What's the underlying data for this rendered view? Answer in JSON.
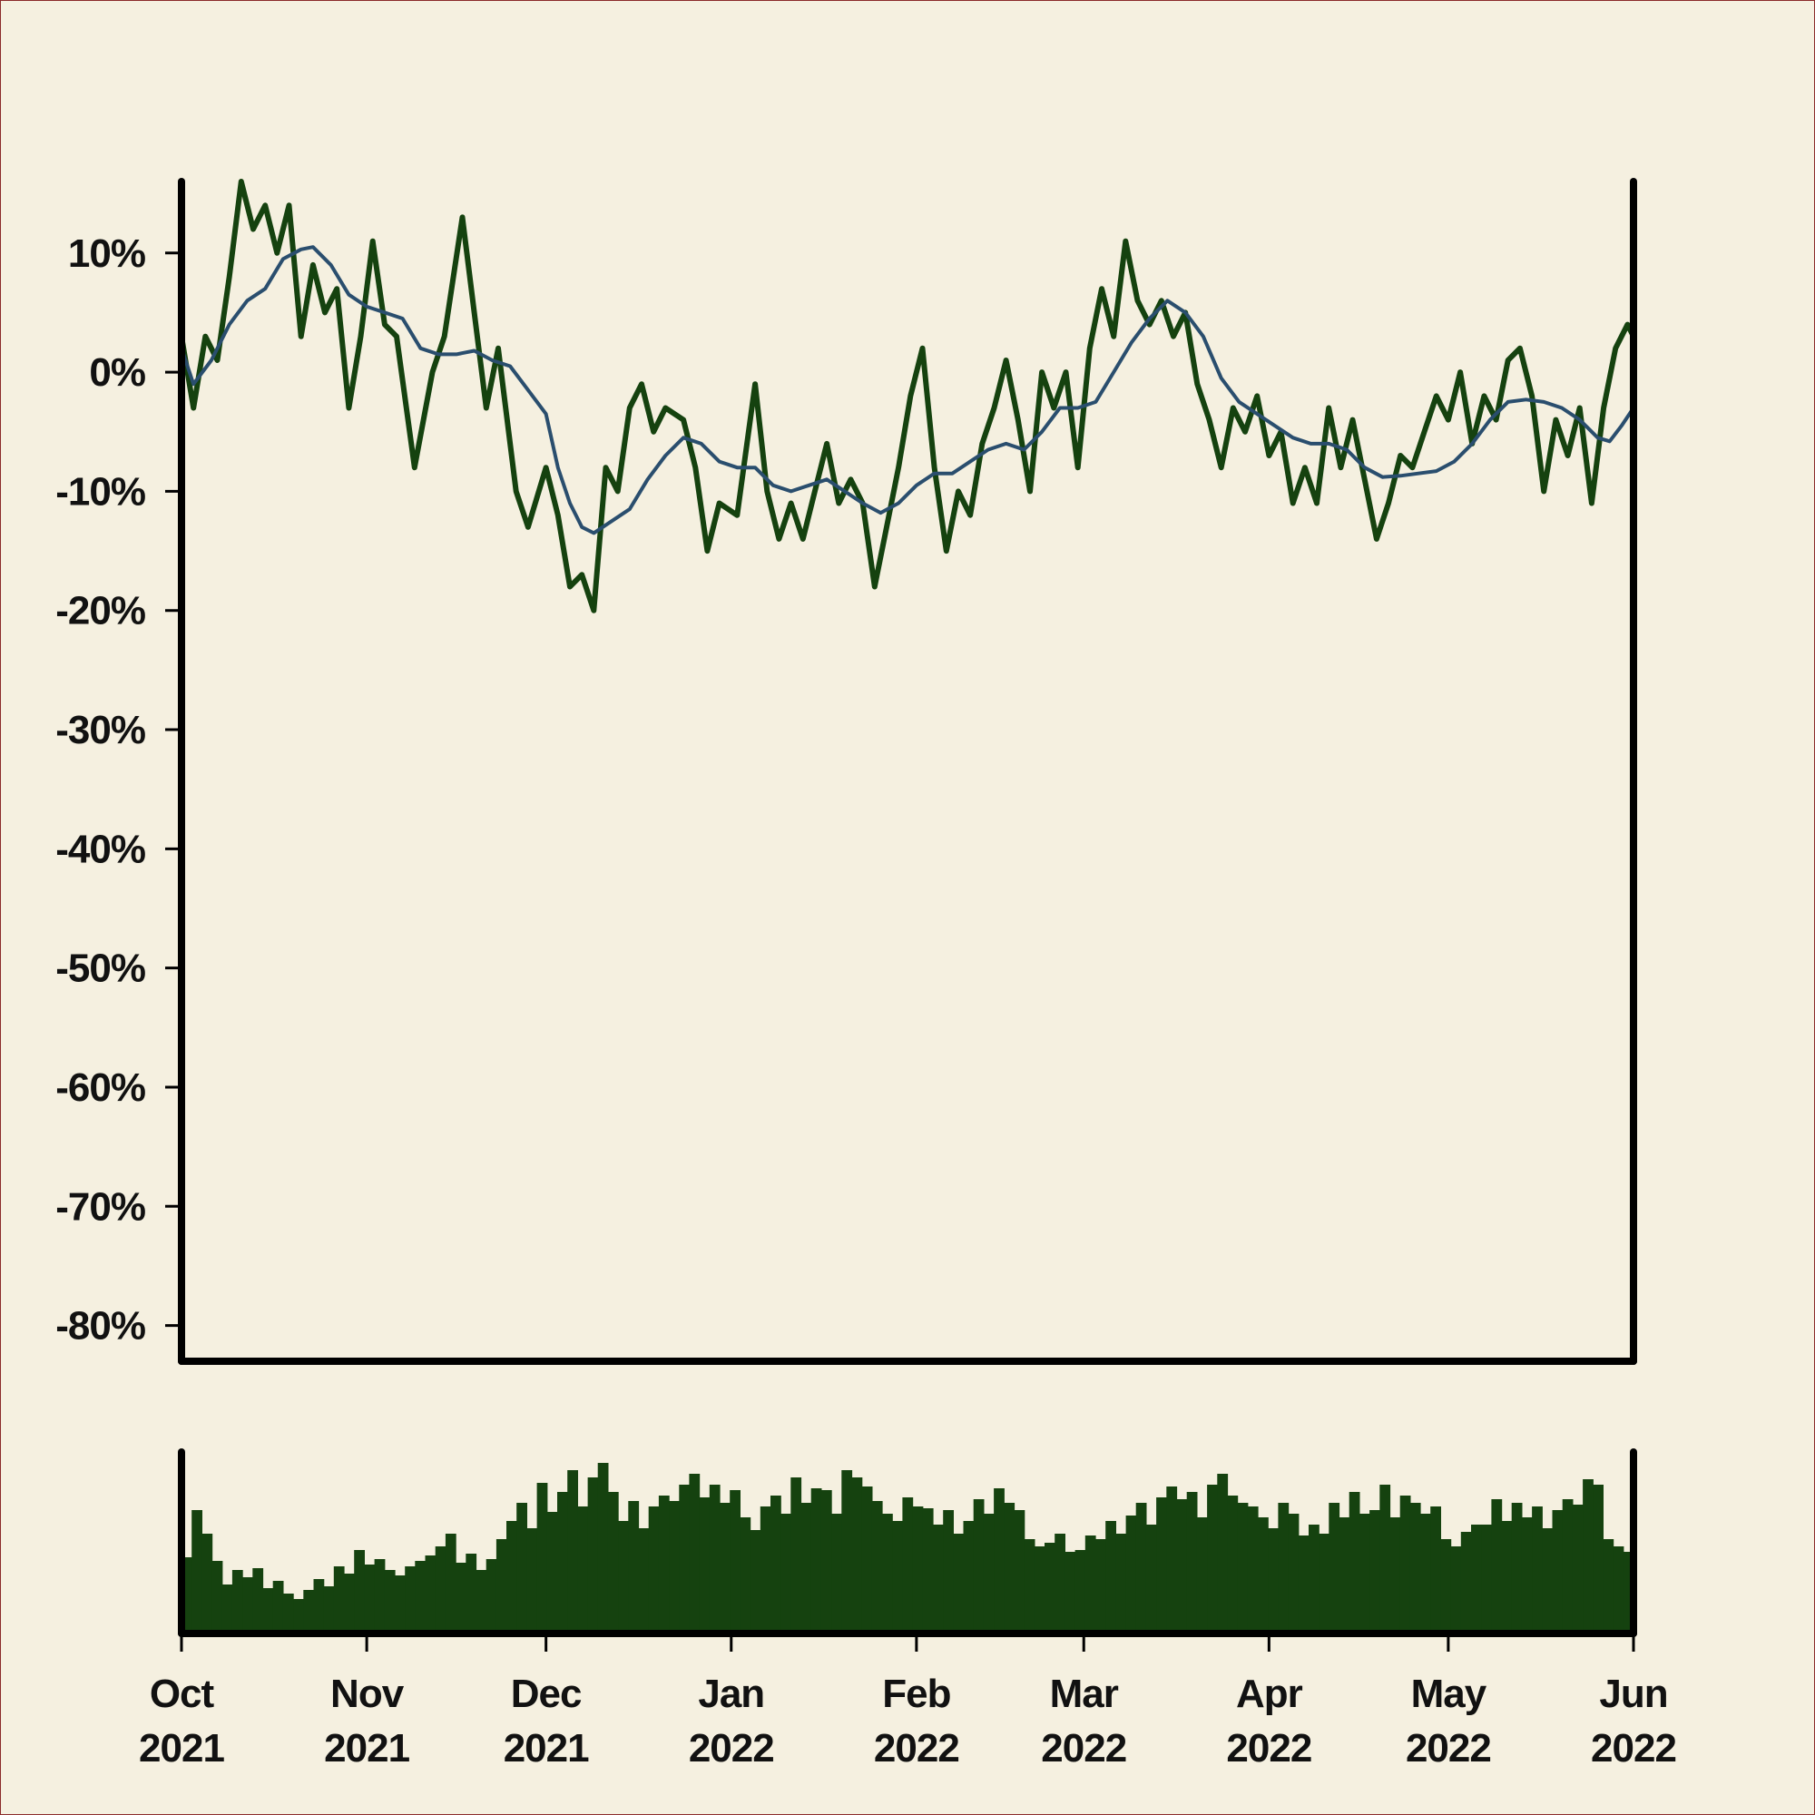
{
  "chart_data": {
    "type": "line",
    "xlabel": "",
    "ylabel": "",
    "x_range": [
      "2021-10-01",
      "2022-06-01"
    ],
    "ylim": [
      -83,
      16
    ],
    "y_ticks": [
      10,
      0,
      -10,
      -20,
      -30,
      -40,
      -50,
      -60,
      -70,
      -80
    ],
    "y_tick_labels": [
      "10%",
      "0%",
      "-10%",
      "-20%",
      "-30%",
      "-40%",
      "-50%",
      "-60%",
      "-70%",
      "-80%"
    ],
    "x_ticks": [
      {
        "date": "2021-10-01",
        "month": "Oct",
        "year": "2021"
      },
      {
        "date": "2021-11-01",
        "month": "Nov",
        "year": "2021"
      },
      {
        "date": "2021-12-01",
        "month": "Dec",
        "year": "2021"
      },
      {
        "date": "2022-01-01",
        "month": "Jan",
        "year": "2022"
      },
      {
        "date": "2022-02-01",
        "month": "Feb",
        "year": "2022"
      },
      {
        "date": "2022-03-01",
        "month": "Mar",
        "year": "2022"
      },
      {
        "date": "2022-04-01",
        "month": "Apr",
        "year": "2022"
      },
      {
        "date": "2022-05-01",
        "month": "May",
        "year": "2022"
      },
      {
        "date": "2022-06-01",
        "month": "Jun",
        "year": "2022"
      }
    ],
    "grid": false,
    "legend": "none",
    "series": [
      {
        "role": "price",
        "color": "#15420f",
        "points": [
          [
            "2021-10-01",
            3
          ],
          [
            "2021-10-03",
            -3
          ],
          [
            "2021-10-05",
            3
          ],
          [
            "2021-10-07",
            1
          ],
          [
            "2021-10-09",
            8
          ],
          [
            "2021-10-11",
            16
          ],
          [
            "2021-10-13",
            12
          ],
          [
            "2021-10-15",
            14
          ],
          [
            "2021-10-17",
            10
          ],
          [
            "2021-10-19",
            14
          ],
          [
            "2021-10-21",
            3
          ],
          [
            "2021-10-23",
            9
          ],
          [
            "2021-10-25",
            5
          ],
          [
            "2021-10-27",
            7
          ],
          [
            "2021-10-29",
            -3
          ],
          [
            "2021-10-31",
            3
          ],
          [
            "2021-11-02",
            11
          ],
          [
            "2021-11-04",
            4
          ],
          [
            "2021-11-06",
            3
          ],
          [
            "2021-11-09",
            -8
          ],
          [
            "2021-11-12",
            0
          ],
          [
            "2021-11-14",
            3
          ],
          [
            "2021-11-17",
            13
          ],
          [
            "2021-11-19",
            5
          ],
          [
            "2021-11-21",
            -3
          ],
          [
            "2021-11-23",
            2
          ],
          [
            "2021-11-26",
            -10
          ],
          [
            "2021-11-28",
            -13
          ],
          [
            "2021-12-01",
            -8
          ],
          [
            "2021-12-03",
            -12
          ],
          [
            "2021-12-05",
            -18
          ],
          [
            "2021-12-07",
            -17
          ],
          [
            "2021-12-09",
            -20
          ],
          [
            "2021-12-11",
            -8
          ],
          [
            "2021-12-13",
            -10
          ],
          [
            "2021-12-15",
            -3
          ],
          [
            "2021-12-17",
            -1
          ],
          [
            "2021-12-19",
            -5
          ],
          [
            "2021-12-21",
            -3
          ],
          [
            "2021-12-24",
            -4
          ],
          [
            "2021-12-26",
            -8
          ],
          [
            "2021-12-28",
            -15
          ],
          [
            "2021-12-30",
            -11
          ],
          [
            "2022-01-02",
            -12
          ],
          [
            "2022-01-05",
            -1
          ],
          [
            "2022-01-07",
            -10
          ],
          [
            "2022-01-09",
            -14
          ],
          [
            "2022-01-11",
            -11
          ],
          [
            "2022-01-13",
            -14
          ],
          [
            "2022-01-15",
            -10
          ],
          [
            "2022-01-17",
            -6
          ],
          [
            "2022-01-19",
            -11
          ],
          [
            "2022-01-21",
            -9
          ],
          [
            "2022-01-23",
            -11
          ],
          [
            "2022-01-25",
            -18
          ],
          [
            "2022-01-27",
            -13
          ],
          [
            "2022-01-29",
            -8
          ],
          [
            "2022-01-31",
            -2
          ],
          [
            "2022-02-02",
            2
          ],
          [
            "2022-02-04",
            -8
          ],
          [
            "2022-02-06",
            -15
          ],
          [
            "2022-02-08",
            -10
          ],
          [
            "2022-02-10",
            -12
          ],
          [
            "2022-02-12",
            -6
          ],
          [
            "2022-02-14",
            -3
          ],
          [
            "2022-02-16",
            1
          ],
          [
            "2022-02-18",
            -4
          ],
          [
            "2022-02-20",
            -10
          ],
          [
            "2022-02-22",
            0
          ],
          [
            "2022-02-24",
            -3
          ],
          [
            "2022-02-26",
            0
          ],
          [
            "2022-02-28",
            -8
          ],
          [
            "2022-03-02",
            2
          ],
          [
            "2022-03-04",
            7
          ],
          [
            "2022-03-06",
            3
          ],
          [
            "2022-03-08",
            11
          ],
          [
            "2022-03-10",
            6
          ],
          [
            "2022-03-12",
            4
          ],
          [
            "2022-03-14",
            6
          ],
          [
            "2022-03-16",
            3
          ],
          [
            "2022-03-18",
            5
          ],
          [
            "2022-03-20",
            -1
          ],
          [
            "2022-03-22",
            -4
          ],
          [
            "2022-03-24",
            -8
          ],
          [
            "2022-03-26",
            -3
          ],
          [
            "2022-03-28",
            -5
          ],
          [
            "2022-03-30",
            -2
          ],
          [
            "2022-04-01",
            -7
          ],
          [
            "2022-04-03",
            -5
          ],
          [
            "2022-04-05",
            -11
          ],
          [
            "2022-04-07",
            -8
          ],
          [
            "2022-04-09",
            -11
          ],
          [
            "2022-04-11",
            -3
          ],
          [
            "2022-04-13",
            -8
          ],
          [
            "2022-04-15",
            -4
          ],
          [
            "2022-04-17",
            -9
          ],
          [
            "2022-04-19",
            -14
          ],
          [
            "2022-04-21",
            -11
          ],
          [
            "2022-04-23",
            -7
          ],
          [
            "2022-04-25",
            -8
          ],
          [
            "2022-04-27",
            -5
          ],
          [
            "2022-04-29",
            -2
          ],
          [
            "2022-05-01",
            -4
          ],
          [
            "2022-05-03",
            0
          ],
          [
            "2022-05-05",
            -6
          ],
          [
            "2022-05-07",
            -2
          ],
          [
            "2022-05-09",
            -4
          ],
          [
            "2022-05-11",
            1
          ],
          [
            "2022-05-13",
            2
          ],
          [
            "2022-05-15",
            -2
          ],
          [
            "2022-05-17",
            -10
          ],
          [
            "2022-05-19",
            -4
          ],
          [
            "2022-05-21",
            -7
          ],
          [
            "2022-05-23",
            -3
          ],
          [
            "2022-05-25",
            -11
          ],
          [
            "2022-05-27",
            -3
          ],
          [
            "2022-05-29",
            2
          ],
          [
            "2022-05-31",
            4
          ],
          [
            "2022-06-01",
            3
          ]
        ]
      },
      {
        "role": "moving-average",
        "color": "#2a4e6e",
        "points": [
          [
            "2021-10-01",
            2
          ],
          [
            "2021-10-03",
            -1
          ],
          [
            "2021-10-06",
            1
          ],
          [
            "2021-10-09",
            4
          ],
          [
            "2021-10-12",
            6
          ],
          [
            "2021-10-15",
            7
          ],
          [
            "2021-10-18",
            9.5
          ],
          [
            "2021-10-21",
            10.3
          ],
          [
            "2021-10-23",
            10.5
          ],
          [
            "2021-10-26",
            9
          ],
          [
            "2021-10-29",
            6.5
          ],
          [
            "2021-11-01",
            5.5
          ],
          [
            "2021-11-04",
            5
          ],
          [
            "2021-11-07",
            4.5
          ],
          [
            "2021-11-10",
            2
          ],
          [
            "2021-11-13",
            1.5
          ],
          [
            "2021-11-16",
            1.5
          ],
          [
            "2021-11-19",
            1.8
          ],
          [
            "2021-11-22",
            1
          ],
          [
            "2021-11-25",
            0.5
          ],
          [
            "2021-11-28",
            -1.5
          ],
          [
            "2021-12-01",
            -3.5
          ],
          [
            "2021-12-03",
            -8
          ],
          [
            "2021-12-05",
            -11
          ],
          [
            "2021-12-07",
            -13
          ],
          [
            "2021-12-09",
            -13.5
          ],
          [
            "2021-12-12",
            -12.5
          ],
          [
            "2021-12-15",
            -11.5
          ],
          [
            "2021-12-18",
            -9
          ],
          [
            "2021-12-21",
            -7
          ],
          [
            "2021-12-24",
            -5.5
          ],
          [
            "2021-12-27",
            -6
          ],
          [
            "2021-12-30",
            -7.5
          ],
          [
            "2022-01-02",
            -8
          ],
          [
            "2022-01-05",
            -8
          ],
          [
            "2022-01-08",
            -9.5
          ],
          [
            "2022-01-11",
            -10
          ],
          [
            "2022-01-14",
            -9.5
          ],
          [
            "2022-01-17",
            -9
          ],
          [
            "2022-01-20",
            -10
          ],
          [
            "2022-01-23",
            -11
          ],
          [
            "2022-01-26",
            -11.8
          ],
          [
            "2022-01-29",
            -11
          ],
          [
            "2022-02-01",
            -9.5
          ],
          [
            "2022-02-04",
            -8.5
          ],
          [
            "2022-02-07",
            -8.5
          ],
          [
            "2022-02-10",
            -7.5
          ],
          [
            "2022-02-13",
            -6.5
          ],
          [
            "2022-02-16",
            -6
          ],
          [
            "2022-02-19",
            -6.5
          ],
          [
            "2022-02-22",
            -5
          ],
          [
            "2022-02-25",
            -3
          ],
          [
            "2022-02-28",
            -3
          ],
          [
            "2022-03-03",
            -2.5
          ],
          [
            "2022-03-06",
            0
          ],
          [
            "2022-03-09",
            2.5
          ],
          [
            "2022-03-12",
            4.5
          ],
          [
            "2022-03-15",
            6
          ],
          [
            "2022-03-18",
            5
          ],
          [
            "2022-03-21",
            3
          ],
          [
            "2022-03-24",
            -0.5
          ],
          [
            "2022-03-27",
            -2.5
          ],
          [
            "2022-03-30",
            -3.5
          ],
          [
            "2022-04-02",
            -4.5
          ],
          [
            "2022-04-05",
            -5.5
          ],
          [
            "2022-04-08",
            -6
          ],
          [
            "2022-04-11",
            -6
          ],
          [
            "2022-04-14",
            -6.5
          ],
          [
            "2022-04-17",
            -8
          ],
          [
            "2022-04-20",
            -8.8
          ],
          [
            "2022-04-23",
            -8.7
          ],
          [
            "2022-04-26",
            -8.5
          ],
          [
            "2022-04-29",
            -8.3
          ],
          [
            "2022-05-02",
            -7.5
          ],
          [
            "2022-05-05",
            -6
          ],
          [
            "2022-05-08",
            -4
          ],
          [
            "2022-05-11",
            -2.5
          ],
          [
            "2022-05-14",
            -2.3
          ],
          [
            "2022-05-17",
            -2.5
          ],
          [
            "2022-05-20",
            -3
          ],
          [
            "2022-05-23",
            -4
          ],
          [
            "2022-05-26",
            -5.5
          ],
          [
            "2022-05-28",
            -5.8
          ],
          [
            "2022-05-30",
            -4.5
          ],
          [
            "2022-06-01",
            -3
          ]
        ]
      }
    ],
    "volume": {
      "type": "bar",
      "color": "#15420f",
      "relative_heights": [
        0.42,
        0.68,
        0.55,
        0.4,
        0.27,
        0.35,
        0.31,
        0.36,
        0.25,
        0.29,
        0.22,
        0.19,
        0.24,
        0.3,
        0.26,
        0.37,
        0.33,
        0.46,
        0.38,
        0.41,
        0.35,
        0.32,
        0.37,
        0.4,
        0.43,
        0.48,
        0.55,
        0.39,
        0.44,
        0.35,
        0.41,
        0.52,
        0.62,
        0.72,
        0.58,
        0.83,
        0.67,
        0.78,
        0.9,
        0.7,
        0.86,
        0.94,
        0.78,
        0.62,
        0.73,
        0.58,
        0.7,
        0.76,
        0.73,
        0.82,
        0.88,
        0.75,
        0.82,
        0.72,
        0.79,
        0.64,
        0.57,
        0.7,
        0.76,
        0.66,
        0.86,
        0.72,
        0.8,
        0.79,
        0.66,
        0.9,
        0.86,
        0.81,
        0.73,
        0.66,
        0.62,
        0.75,
        0.7,
        0.69,
        0.6,
        0.68,
        0.55,
        0.62,
        0.74,
        0.66,
        0.8,
        0.72,
        0.68,
        0.52,
        0.48,
        0.5,
        0.55,
        0.45,
        0.46,
        0.54,
        0.52,
        0.62,
        0.55,
        0.65,
        0.72,
        0.6,
        0.75,
        0.81,
        0.74,
        0.78,
        0.64,
        0.82,
        0.88,
        0.76,
        0.72,
        0.7,
        0.64,
        0.58,
        0.72,
        0.66,
        0.54,
        0.6,
        0.55,
        0.72,
        0.64,
        0.78,
        0.66,
        0.68,
        0.82,
        0.64,
        0.76,
        0.72,
        0.66,
        0.7,
        0.52,
        0.48,
        0.56,
        0.6,
        0.6,
        0.74,
        0.62,
        0.72,
        0.64,
        0.7,
        0.58,
        0.68,
        0.74,
        0.71,
        0.85,
        0.82,
        0.52,
        0.48,
        0.45
      ]
    }
  }
}
